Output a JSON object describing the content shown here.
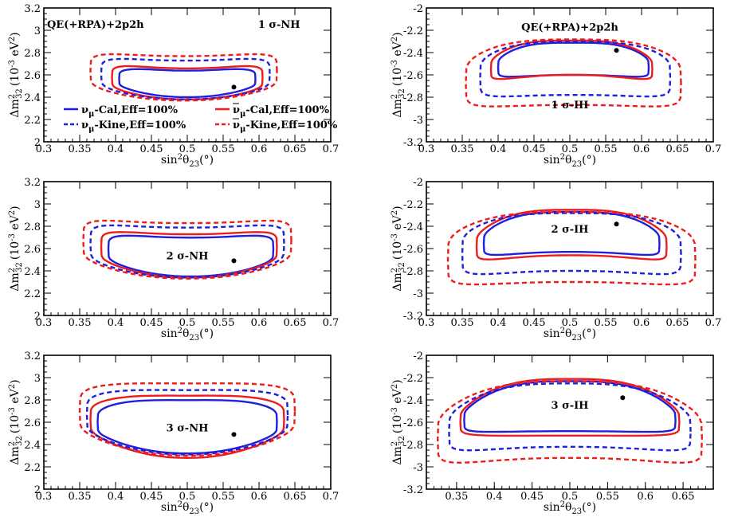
{
  "colors": {
    "cal_nu": "#1f1fdd",
    "cal_nubar": "#ee1c1c",
    "kine_nu": "#1f1fdd",
    "kine_nubar": "#ee1c1c",
    "marker": "#000000"
  },
  "legend": {
    "entries": [
      {
        "nu": "ν",
        "sub": "μ",
        "text": "-Cal,Eff=100%",
        "bar": false,
        "dashed": false,
        "color_key": "cal_nu"
      },
      {
        "nu": "ν",
        "sub": "μ",
        "text": "-Cal,Eff=100%",
        "bar": true,
        "dashed": false,
        "color_key": "cal_nubar"
      },
      {
        "nu": "ν",
        "sub": "μ",
        "text": "-Kine,Eff=100%",
        "bar": false,
        "dashed": true,
        "color_key": "kine_nu"
      },
      {
        "nu": "ν",
        "sub": "μ",
        "text": "-Kine,Eff=100%",
        "bar": true,
        "dashed": true,
        "color_key": "kine_nubar"
      }
    ]
  },
  "chart_data": [
    {
      "type": "contour",
      "panel": "1 σ-NH",
      "annotations": [
        "QE(+RPA)+2p2h",
        "1 σ-NH"
      ],
      "xlabel": "sin²θ₂₃(°)",
      "ylabel": "Δm²₃₂ (10⁻³ eV²)",
      "xlim": [
        0.3,
        0.7
      ],
      "ylim": [
        2.0,
        3.2
      ],
      "xticks": [
        "0.3",
        "0.35",
        "0.4",
        "0.45",
        "0.5",
        "0.55",
        "0.6",
        "0.65",
        "0.7"
      ],
      "yticks": [
        "2",
        "2.2",
        "2.4",
        "2.6",
        "2.8",
        "3",
        "3.2"
      ],
      "best_fit": [
        0.565,
        2.49
      ],
      "series": [
        {
          "key": "cal_nu",
          "x_min": 0.405,
          "x_max": 0.595,
          "y_top_edge": 2.66,
          "y_top_mid": 2.65,
          "y_bot_edge": 2.47,
          "y_bot_mid": 2.4
        },
        {
          "key": "cal_nubar",
          "x_min": 0.395,
          "x_max": 0.605,
          "y_top_edge": 2.7,
          "y_top_mid": 2.67,
          "y_bot_edge": 2.45,
          "y_bot_mid": 2.38
        },
        {
          "key": "kine_nu",
          "x_min": 0.38,
          "x_max": 0.615,
          "y_top_edge": 2.77,
          "y_top_mid": 2.74,
          "y_bot_edge": 2.45,
          "y_bot_mid": 2.38
        },
        {
          "key": "kine_nubar",
          "x_min": 0.365,
          "x_max": 0.625,
          "y_top_edge": 2.82,
          "y_top_mid": 2.78,
          "y_bot_edge": 2.45,
          "y_bot_mid": 2.37
        }
      ]
    },
    {
      "type": "contour",
      "panel": "1 σ-IH",
      "annotations": [
        "QE(+RPA)+2p2h",
        "1 σ-IH"
      ],
      "xlabel": "sin²θ₂₃(°)",
      "ylabel": "Δm²₃₂ (10⁻³ eV²)",
      "xlim": [
        0.3,
        0.7
      ],
      "ylim": [
        -3.2,
        -2.0
      ],
      "xticks": [
        "0.3",
        "0.35",
        "0.4",
        "0.45",
        "0.5",
        "0.55",
        "0.6",
        "0.65",
        "0.7"
      ],
      "yticks": [
        "-2",
        "-2.2",
        "-2.4",
        "-2.6",
        "-2.8",
        "-3",
        "-3.2"
      ],
      "best_fit": [
        0.565,
        -2.38
      ],
      "series": [
        {
          "key": "cal_nu",
          "x_min": 0.4,
          "x_max": 0.61,
          "y_top_edge": -2.42,
          "y_top_mid": -2.3,
          "y_bot_edge": -2.65,
          "y_bot_mid": -2.6
        },
        {
          "key": "cal_nubar",
          "x_min": 0.39,
          "x_max": 0.615,
          "y_top_edge": -2.42,
          "y_top_mid": -2.28,
          "y_bot_edge": -2.68,
          "y_bot_mid": -2.6
        },
        {
          "key": "kine_nu",
          "x_min": 0.375,
          "x_max": 0.64,
          "y_top_edge": -2.4,
          "y_top_mid": -2.29,
          "y_bot_edge": -2.85,
          "y_bot_mid": -2.78
        },
        {
          "key": "kine_nubar",
          "x_min": 0.355,
          "x_max": 0.655,
          "y_top_edge": -2.4,
          "y_top_mid": -2.27,
          "y_bot_edge": -2.95,
          "y_bot_mid": -2.87
        }
      ]
    },
    {
      "type": "contour",
      "panel": "2 σ-NH",
      "annotations": [
        "2 σ-NH"
      ],
      "xlabel": "sin²θ₂₃(°)",
      "ylabel": "Δm²₃₂ (10⁻³ eV²)",
      "xlim": [
        0.3,
        0.7
      ],
      "ylim": [
        2.0,
        3.2
      ],
      "xticks": [
        "0.3",
        "0.35",
        "0.4",
        "0.45",
        "0.5",
        "0.55",
        "0.6",
        "0.65",
        "0.7"
      ],
      "yticks": [
        "2",
        "2.2",
        "2.4",
        "2.6",
        "2.8",
        "3",
        "3.2"
      ],
      "best_fit": [
        0.565,
        2.49
      ],
      "series": [
        {
          "key": "cal_nu",
          "x_min": 0.39,
          "x_max": 0.62,
          "y_top_edge": 2.74,
          "y_top_mid": 2.71,
          "y_bot_edge": 2.45,
          "y_bot_mid": 2.35
        },
        {
          "key": "cal_nubar",
          "x_min": 0.38,
          "x_max": 0.625,
          "y_top_edge": 2.78,
          "y_top_mid": 2.74,
          "y_bot_edge": 2.45,
          "y_bot_mid": 2.34
        },
        {
          "key": "kine_nu",
          "x_min": 0.365,
          "x_max": 0.635,
          "y_top_edge": 2.85,
          "y_top_mid": 2.8,
          "y_bot_edge": 2.44,
          "y_bot_mid": 2.34
        },
        {
          "key": "kine_nubar",
          "x_min": 0.355,
          "x_max": 0.645,
          "y_top_edge": 2.9,
          "y_top_mid": 2.84,
          "y_bot_edge": 2.44,
          "y_bot_mid": 2.33
        }
      ]
    },
    {
      "type": "contour",
      "panel": "2 σ-IH",
      "annotations": [
        "2 σ-IH"
      ],
      "xlabel": "sin²θ₂₃(°)",
      "ylabel": "Δm²₃₂ (10⁻³ eV²)",
      "xlim": [
        0.3,
        0.7
      ],
      "ylim": [
        -3.2,
        -2.0
      ],
      "xticks": [
        "0.3",
        "0.35",
        "0.4",
        "0.45",
        "0.5",
        "0.55",
        "0.6",
        "0.65",
        "0.7"
      ],
      "yticks": [
        "-2",
        "-2.2",
        "-2.4",
        "-2.6",
        "-2.8",
        "-3",
        "-3.2"
      ],
      "best_fit": [
        0.565,
        -2.38
      ],
      "series": [
        {
          "key": "cal_nu",
          "x_min": 0.38,
          "x_max": 0.625,
          "y_top_edge": -2.42,
          "y_top_mid": -2.26,
          "y_bot_edge": -2.7,
          "y_bot_mid": -2.63
        },
        {
          "key": "cal_nubar",
          "x_min": 0.37,
          "x_max": 0.635,
          "y_top_edge": -2.42,
          "y_top_mid": -2.24,
          "y_bot_edge": -2.75,
          "y_bot_mid": -2.66
        },
        {
          "key": "kine_nu",
          "x_min": 0.35,
          "x_max": 0.655,
          "y_top_edge": -2.4,
          "y_top_mid": -2.27,
          "y_bot_edge": -2.9,
          "y_bot_mid": -2.8
        },
        {
          "key": "kine_nubar",
          "x_min": 0.33,
          "x_max": 0.675,
          "y_top_edge": -2.4,
          "y_top_mid": -2.26,
          "y_bot_edge": -3.0,
          "y_bot_mid": -2.9
        }
      ]
    },
    {
      "type": "contour",
      "panel": "3 σ-NH",
      "annotations": [
        "3 σ-NH"
      ],
      "xlabel": "sin²θ₂₃(°)",
      "ylabel": "Δm²₃₂ (10⁻³ eV²)",
      "xlim": [
        0.3,
        0.7
      ],
      "ylim": [
        2.0,
        3.2
      ],
      "xticks": [
        "0.3",
        "0.35",
        "0.4",
        "0.45",
        "0.5",
        "0.55",
        "0.6",
        "0.65",
        "0.7"
      ],
      "yticks": [
        "2",
        "2.2",
        "2.4",
        "2.6",
        "2.8",
        "3",
        "3.2"
      ],
      "best_fit": [
        0.565,
        2.49
      ],
      "series": [
        {
          "key": "cal_nu",
          "x_min": 0.375,
          "x_max": 0.625,
          "y_top_edge": 2.75,
          "y_top_mid": 2.81,
          "y_bot_edge": 2.45,
          "y_bot_mid": 2.32
        },
        {
          "key": "cal_nubar",
          "x_min": 0.365,
          "x_max": 0.635,
          "y_top_edge": 2.8,
          "y_top_mid": 2.85,
          "y_bot_edge": 2.45,
          "y_bot_mid": 2.28
        },
        {
          "key": "kine_nu",
          "x_min": 0.36,
          "x_max": 0.64,
          "y_top_edge": 2.88,
          "y_top_mid": 2.9,
          "y_bot_edge": 2.45,
          "y_bot_mid": 2.31
        },
        {
          "key": "kine_nubar",
          "x_min": 0.35,
          "x_max": 0.65,
          "y_top_edge": 2.95,
          "y_top_mid": 2.96,
          "y_bot_edge": 2.45,
          "y_bot_mid": 2.3
        }
      ]
    },
    {
      "type": "contour",
      "panel": "3 σ-IH",
      "annotations": [
        "3 σ-IH"
      ],
      "xlabel": "sin²θ₂₃(°)",
      "ylabel": "Δm²₃₂ (10⁻³ eV²)",
      "xlim": [
        0.31,
        0.69
      ],
      "ylim": [
        -3.2,
        -2.0
      ],
      "xticks": [
        "0.35",
        "0.4",
        "0.45",
        "0.5",
        "0.55",
        "0.6",
        "0.65"
      ],
      "yticks": [
        "-2",
        "-2.2",
        "-2.4",
        "-2.6",
        "-2.8",
        "-3",
        "-3.2"
      ],
      "best_fit": [
        0.57,
        -2.38
      ],
      "series": [
        {
          "key": "cal_nu",
          "x_min": 0.36,
          "x_max": 0.64,
          "y_top_edge": -2.45,
          "y_top_mid": -2.22,
          "y_bot_edge": -2.72,
          "y_bot_mid": -2.68
        },
        {
          "key": "cal_nubar",
          "x_min": 0.355,
          "x_max": 0.645,
          "y_top_edge": -2.45,
          "y_top_mid": -2.2,
          "y_bot_edge": -2.75,
          "y_bot_mid": -2.72
        },
        {
          "key": "kine_nu",
          "x_min": 0.34,
          "x_max": 0.66,
          "y_top_edge": -2.45,
          "y_top_mid": -2.24,
          "y_bot_edge": -2.92,
          "y_bot_mid": -2.82
        },
        {
          "key": "kine_nubar",
          "x_min": 0.325,
          "x_max": 0.675,
          "y_top_edge": -2.45,
          "y_top_mid": -2.22,
          "y_bot_edge": -3.05,
          "y_bot_mid": -2.92
        }
      ]
    }
  ]
}
